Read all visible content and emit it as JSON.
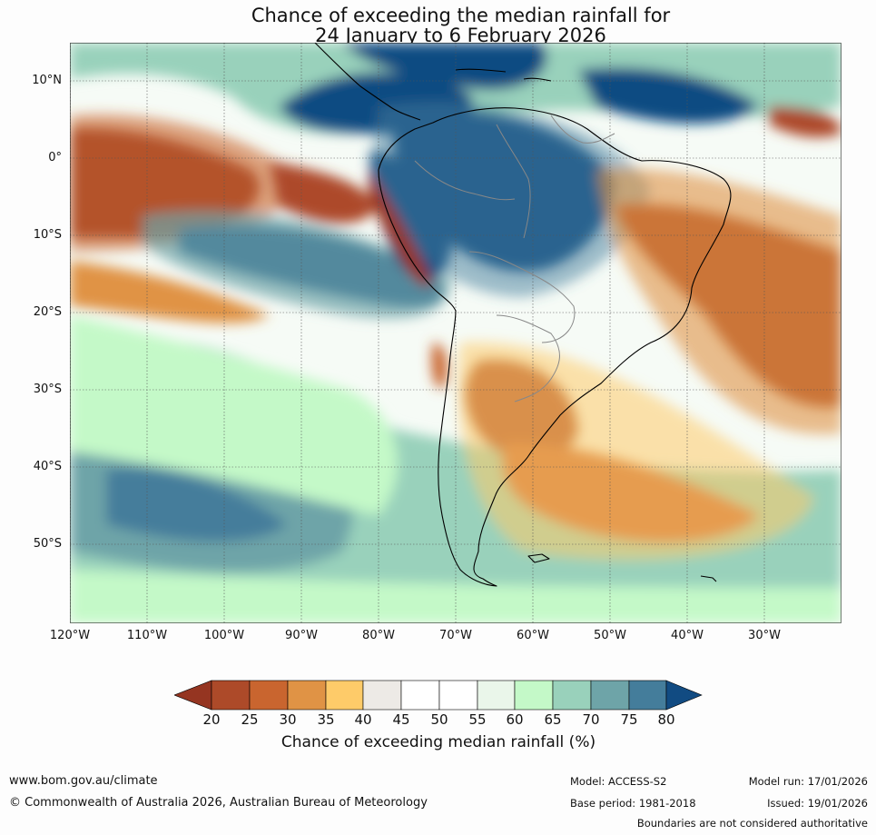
{
  "header": {
    "title_line1": "Chance of exceeding the median rainfall for",
    "title_line2": "24 January to 6 February 2026"
  },
  "map": {
    "lat_labels": [
      "10°N",
      "0°",
      "10°S",
      "20°S",
      "30°S",
      "40°S",
      "50°S"
    ],
    "lon_labels": [
      "120°W",
      "110°W",
      "100°W",
      "90°W",
      "80°W",
      "70°W",
      "60°W",
      "50°W",
      "40°W",
      "30°W"
    ],
    "extent": {
      "lon_min": -120,
      "lon_max": -20,
      "lat_min": -60,
      "lat_max": 15
    },
    "field_regions": [
      {
        "name": "north-pacific-blue-band",
        "probability": 80
      },
      {
        "name": "equatorial-pacific-dry",
        "probability": 20
      },
      {
        "name": "amazon-wet",
        "probability": 80
      },
      {
        "name": "south-pacific-wet-band",
        "probability": 80
      },
      {
        "name": "argentina-dry",
        "probability": 25
      },
      {
        "name": "south-atlantic-dry",
        "probability": 25
      },
      {
        "name": "brazil-atlantic-dry",
        "probability": 25
      },
      {
        "name": "southern-ocean-mixed",
        "probability": 65
      }
    ]
  },
  "colorbar": {
    "colors": [
      "#953521",
      "#ad4a29",
      "#c9652f",
      "#e09345",
      "#fecb69",
      "#edeae6",
      "#ffffff",
      "#ffffff",
      "#eaf6ea",
      "#c4f9c8",
      "#99d1bb",
      "#6ea4a8",
      "#447d9b",
      "#114b82"
    ],
    "labels": [
      "20",
      "25",
      "30",
      "35",
      "40",
      "45",
      "50",
      "55",
      "60",
      "65",
      "70",
      "75",
      "80"
    ],
    "title": "Chance of exceeding median rainfall (%)"
  },
  "footer": {
    "website": "www.bom.gov.au/climate",
    "copyright": "© Commonwealth of Australia 2026, Australian Bureau of Meteorology",
    "model": "Model: ACCESS-S2",
    "base_period": "Base period: 1981-2018",
    "model_run": "Model run: 17/01/2026",
    "issued": "Issued: 19/01/2026",
    "disclaimer": "Boundaries are not considered authoritative"
  }
}
